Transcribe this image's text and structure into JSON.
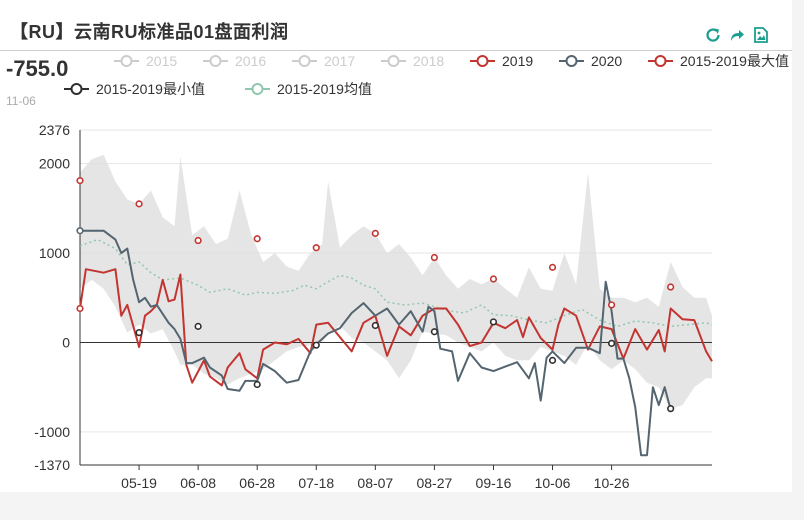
{
  "page": {
    "title": "【RU】云南RU标准品01盘面利润",
    "readout_value": "-755.0",
    "readout_date": "11-06",
    "tools": [
      "refresh-icon",
      "share-icon",
      "save-image-icon"
    ],
    "accent": "#1a9e8f"
  },
  "chart_data": {
    "type": "line",
    "x_tick_labels": [
      "05-19",
      "06-08",
      "06-28",
      "07-18",
      "08-07",
      "08-27",
      "09-16",
      "10-06",
      "10-26"
    ],
    "ylim": [
      -1370,
      2376
    ],
    "y_ticks": [
      -1370,
      -1000,
      0,
      1000,
      2000,
      2376
    ],
    "legend_placement": "top",
    "grid": true,
    "series": [
      {
        "name": "2015",
        "color": "#cccccc",
        "inactive": true
      },
      {
        "name": "2016",
        "color": "#cccccc",
        "inactive": true
      },
      {
        "name": "2017",
        "color": "#cccccc",
        "inactive": true
      },
      {
        "name": "2018",
        "color": "#cccccc",
        "inactive": true
      },
      {
        "name": "2019",
        "color": "#c23531",
        "points": [
          [
            0,
            380
          ],
          [
            1,
            820
          ],
          [
            4,
            780
          ],
          [
            6,
            820
          ],
          [
            7,
            300
          ],
          [
            8,
            420
          ],
          [
            10,
            -50
          ],
          [
            11,
            300
          ],
          [
            12,
            350
          ],
          [
            13,
            420
          ],
          [
            14,
            700
          ],
          [
            15,
            460
          ],
          [
            16,
            480
          ],
          [
            17,
            760
          ],
          [
            18,
            -250
          ],
          [
            19,
            -450
          ],
          [
            21,
            -200
          ],
          [
            22,
            -380
          ],
          [
            24,
            -480
          ],
          [
            25,
            -280
          ],
          [
            27,
            -120
          ],
          [
            28,
            -300
          ],
          [
            30,
            -400
          ],
          [
            31,
            -80
          ],
          [
            33,
            0
          ],
          [
            35,
            -20
          ],
          [
            37,
            40
          ],
          [
            39,
            -120
          ],
          [
            40,
            200
          ],
          [
            42,
            220
          ],
          [
            44,
            60
          ],
          [
            46,
            -100
          ],
          [
            48,
            220
          ],
          [
            50,
            300
          ],
          [
            52,
            -150
          ],
          [
            54,
            180
          ],
          [
            56,
            80
          ],
          [
            58,
            300
          ],
          [
            60,
            380
          ],
          [
            62,
            380
          ],
          [
            64,
            200
          ],
          [
            66,
            -40
          ],
          [
            68,
            0
          ],
          [
            70,
            220
          ],
          [
            72,
            160
          ],
          [
            74,
            250
          ],
          [
            75,
            60
          ],
          [
            76,
            280
          ],
          [
            78,
            50
          ],
          [
            80,
            -80
          ],
          [
            81,
            200
          ],
          [
            82,
            380
          ],
          [
            84,
            300
          ],
          [
            86,
            -80
          ],
          [
            88,
            180
          ],
          [
            90,
            150
          ],
          [
            92,
            -180
          ],
          [
            94,
            150
          ],
          [
            96,
            -80
          ],
          [
            98,
            140
          ],
          [
            99,
            -100
          ],
          [
            100,
            380
          ],
          [
            102,
            260
          ],
          [
            104,
            250
          ],
          [
            106,
            -100
          ],
          [
            107,
            -210
          ]
        ]
      },
      {
        "name": "2020",
        "color": "#546570",
        "points": [
          [
            0,
            1250
          ],
          [
            4,
            1250
          ],
          [
            6,
            1150
          ],
          [
            7,
            1000
          ],
          [
            8,
            1050
          ],
          [
            9,
            700
          ],
          [
            10,
            450
          ],
          [
            11,
            500
          ],
          [
            12,
            400
          ],
          [
            13,
            420
          ],
          [
            15,
            220
          ],
          [
            16,
            150
          ],
          [
            17,
            40
          ],
          [
            18,
            -230
          ],
          [
            19,
            -230
          ],
          [
            21,
            -170
          ],
          [
            22,
            -280
          ],
          [
            24,
            -370
          ],
          [
            25,
            -520
          ],
          [
            27,
            -540
          ],
          [
            28,
            -430
          ],
          [
            30,
            -430
          ],
          [
            31,
            -240
          ],
          [
            33,
            -320
          ],
          [
            35,
            -450
          ],
          [
            37,
            -420
          ],
          [
            39,
            -100
          ],
          [
            40,
            -20
          ],
          [
            42,
            100
          ],
          [
            44,
            160
          ],
          [
            46,
            330
          ],
          [
            48,
            440
          ],
          [
            50,
            300
          ],
          [
            52,
            380
          ],
          [
            54,
            200
          ],
          [
            56,
            350
          ],
          [
            58,
            120
          ],
          [
            59,
            400
          ],
          [
            60,
            350
          ],
          [
            61,
            -70
          ],
          [
            63,
            -100
          ],
          [
            64,
            -430
          ],
          [
            66,
            -120
          ],
          [
            68,
            -280
          ],
          [
            70,
            -320
          ],
          [
            72,
            -270
          ],
          [
            74,
            -220
          ],
          [
            76,
            -400
          ],
          [
            77,
            -230
          ],
          [
            78,
            -650
          ],
          [
            79,
            -170
          ],
          [
            80,
            -100
          ],
          [
            82,
            -230
          ],
          [
            84,
            -60
          ],
          [
            86,
            -60
          ],
          [
            88,
            -120
          ],
          [
            89,
            680
          ],
          [
            90,
            350
          ],
          [
            91,
            -180
          ],
          [
            92,
            -180
          ],
          [
            93,
            -400
          ],
          [
            94,
            -720
          ],
          [
            95,
            -1260
          ],
          [
            96,
            -1260
          ],
          [
            97,
            -500
          ],
          [
            98,
            -700
          ],
          [
            99,
            -500
          ],
          [
            100,
            -755
          ]
        ]
      },
      {
        "name": "2015-2019最大值",
        "color": "#c23531",
        "markers": [
          [
            0,
            1810
          ],
          [
            10,
            1550
          ],
          [
            20,
            1140
          ],
          [
            30,
            1160
          ],
          [
            40,
            1060
          ],
          [
            50,
            1220
          ],
          [
            60,
            950
          ],
          [
            70,
            710
          ],
          [
            80,
            840
          ],
          [
            90,
            420
          ],
          [
            100,
            620
          ]
        ]
      },
      {
        "name": "2015-2019最小值",
        "color": "#2f2f2f",
        "markers": [
          [
            10,
            110
          ],
          [
            20,
            180
          ],
          [
            30,
            -470
          ],
          [
            40,
            -30
          ],
          [
            50,
            190
          ],
          [
            60,
            120
          ],
          [
            70,
            230
          ],
          [
            80,
            -200
          ],
          [
            90,
            -10
          ],
          [
            100,
            -740
          ]
        ]
      },
      {
        "name": "2015-2019均值",
        "color": "#91c7ae",
        "points": [
          [
            0,
            1080
          ],
          [
            3,
            1150
          ],
          [
            6,
            1050
          ],
          [
            8,
            870
          ],
          [
            10,
            900
          ],
          [
            12,
            780
          ],
          [
            14,
            700
          ],
          [
            17,
            720
          ],
          [
            20,
            640
          ],
          [
            22,
            560
          ],
          [
            25,
            600
          ],
          [
            28,
            530
          ],
          [
            30,
            560
          ],
          [
            33,
            550
          ],
          [
            36,
            580
          ],
          [
            38,
            640
          ],
          [
            40,
            600
          ],
          [
            42,
            680
          ],
          [
            44,
            750
          ],
          [
            46,
            720
          ],
          [
            48,
            640
          ],
          [
            50,
            600
          ],
          [
            52,
            450
          ],
          [
            55,
            420
          ],
          [
            58,
            440
          ],
          [
            60,
            400
          ],
          [
            62,
            360
          ],
          [
            65,
            330
          ],
          [
            68,
            420
          ],
          [
            70,
            310
          ],
          [
            73,
            300
          ],
          [
            76,
            250
          ],
          [
            79,
            220
          ],
          [
            82,
            300
          ],
          [
            85,
            370
          ],
          [
            88,
            250
          ],
          [
            91,
            180
          ],
          [
            94,
            240
          ],
          [
            97,
            220
          ],
          [
            100,
            180
          ],
          [
            103,
            200
          ],
          [
            106,
            220
          ],
          [
            107,
            200
          ]
        ]
      }
    ],
    "band": {
      "name": "range",
      "upper": [
        [
          0,
          1900
        ],
        [
          2,
          2050
        ],
        [
          4,
          2100
        ],
        [
          6,
          1800
        ],
        [
          8,
          1600
        ],
        [
          10,
          1550
        ],
        [
          12,
          1700
        ],
        [
          14,
          1400
        ],
        [
          16,
          1300
        ],
        [
          17,
          2080
        ],
        [
          19,
          1200
        ],
        [
          21,
          1300
        ],
        [
          23,
          1100
        ],
        [
          25,
          1160
        ],
        [
          27,
          1700
        ],
        [
          29,
          1200
        ],
        [
          31,
          900
        ],
        [
          33,
          1000
        ],
        [
          35,
          850
        ],
        [
          37,
          800
        ],
        [
          39,
          1000
        ],
        [
          41,
          1100
        ],
        [
          42,
          1800
        ],
        [
          44,
          1060
        ],
        [
          46,
          1200
        ],
        [
          48,
          1300
        ],
        [
          50,
          1220
        ],
        [
          52,
          1000
        ],
        [
          54,
          1100
        ],
        [
          56,
          950
        ],
        [
          58,
          750
        ],
        [
          60,
          950
        ],
        [
          62,
          750
        ],
        [
          64,
          600
        ],
        [
          66,
          710
        ],
        [
          68,
          650
        ],
        [
          70,
          720
        ],
        [
          72,
          600
        ],
        [
          74,
          500
        ],
        [
          76,
          840
        ],
        [
          78,
          600
        ],
        [
          80,
          580
        ],
        [
          82,
          1000
        ],
        [
          84,
          650
        ],
        [
          86,
          1900
        ],
        [
          88,
          600
        ],
        [
          90,
          500
        ],
        [
          92,
          500
        ],
        [
          94,
          450
        ],
        [
          96,
          500
        ],
        [
          98,
          400
        ],
        [
          100,
          900
        ],
        [
          102,
          620
        ],
        [
          104,
          500
        ],
        [
          106,
          500
        ],
        [
          107,
          300
        ]
      ],
      "lower": [
        [
          0,
          600
        ],
        [
          2,
          700
        ],
        [
          4,
          600
        ],
        [
          6,
          400
        ],
        [
          8,
          110
        ],
        [
          10,
          200
        ],
        [
          12,
          100
        ],
        [
          14,
          150
        ],
        [
          16,
          -100
        ],
        [
          17,
          -250
        ],
        [
          19,
          -250
        ],
        [
          21,
          -350
        ],
        [
          23,
          -400
        ],
        [
          25,
          -470
        ],
        [
          27,
          -400
        ],
        [
          29,
          -350
        ],
        [
          31,
          -300
        ],
        [
          33,
          -200
        ],
        [
          35,
          -100
        ],
        [
          37,
          -50
        ],
        [
          39,
          -30
        ],
        [
          41,
          0
        ],
        [
          42,
          100
        ],
        [
          44,
          190
        ],
        [
          46,
          50
        ],
        [
          48,
          0
        ],
        [
          50,
          -100
        ],
        [
          52,
          -200
        ],
        [
          54,
          -400
        ],
        [
          56,
          -200
        ],
        [
          58,
          120
        ],
        [
          60,
          100
        ],
        [
          62,
          80
        ],
        [
          64,
          0
        ],
        [
          66,
          -50
        ],
        [
          68,
          -100
        ],
        [
          70,
          0
        ],
        [
          72,
          -150
        ],
        [
          74,
          -200
        ],
        [
          76,
          -200
        ],
        [
          78,
          -50
        ],
        [
          80,
          -100
        ],
        [
          82,
          -150
        ],
        [
          84,
          -250
        ],
        [
          86,
          -10
        ],
        [
          88,
          -200
        ],
        [
          90,
          -300
        ],
        [
          92,
          -200
        ],
        [
          94,
          -300
        ],
        [
          96,
          -450
        ],
        [
          98,
          -500
        ],
        [
          100,
          -740
        ],
        [
          102,
          -700
        ],
        [
          104,
          -500
        ],
        [
          106,
          -400
        ],
        [
          107,
          -400
        ]
      ]
    }
  }
}
